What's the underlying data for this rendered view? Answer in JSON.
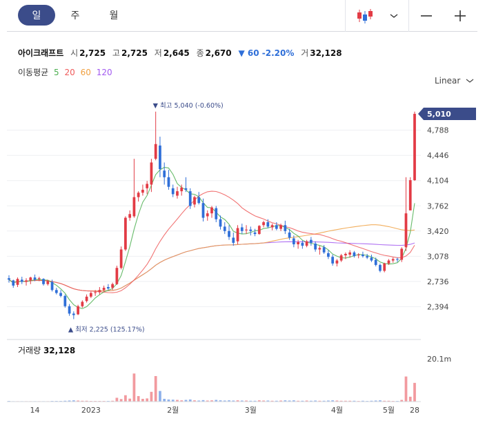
{
  "tabs": [
    "일",
    "주",
    "월"
  ],
  "controls": {
    "chart_type_icon": "candlestick-icon",
    "dropdown_icon": "chevron-down-icon",
    "zoom_out_icon": "minus-icon",
    "zoom_in_icon": "plus-icon"
  },
  "stock": {
    "name": "아이크래프트",
    "open_label": "시",
    "open": "2,725",
    "high_label": "고",
    "high": "2,725",
    "low_label": "저",
    "low": "2,645",
    "close_label": "종",
    "close": "2,670",
    "change": "▼ 60 -2.20%",
    "volume_label": "거",
    "volume": "32,128"
  },
  "moving_average": {
    "label": "이동평균",
    "periods": [
      "5",
      "20",
      "60",
      "120"
    ]
  },
  "scale_mode": "Linear",
  "volume_panel": {
    "label": "거래량",
    "value": "32,128",
    "axis_label": "20.1m"
  },
  "colors": {
    "up": "#e23b45",
    "down": "#2f6fd8",
    "ma5": "#4caf50",
    "ma20": "#ef5a5a",
    "ma60": "#f0a040",
    "ma120": "#a259f0",
    "accent": "#3b4c8a"
  },
  "chart_data": {
    "type": "candlestick",
    "y_ticks": [
      "4,788",
      "4,446",
      "4,104",
      "3,762",
      "3,420",
      "3,078",
      "2,736",
      "2,394"
    ],
    "y_range": [
      2220,
      5150
    ],
    "current_price_label": "5,010",
    "x_ticks": [
      "14",
      "2023",
      "2월",
      "3월",
      "4월",
      "5월",
      "28"
    ],
    "high_annotation": "최고 5,040 (-0.60%)",
    "low_annotation": "최저 2,225 (125.17%)",
    "candles": [
      [
        2780,
        2820,
        2720,
        2760
      ],
      [
        2750,
        2760,
        2650,
        2680
      ],
      [
        2690,
        2790,
        2660,
        2770
      ],
      [
        2760,
        2800,
        2700,
        2730
      ],
      [
        2730,
        2780,
        2680,
        2750
      ],
      [
        2750,
        2800,
        2700,
        2790
      ],
      [
        2790,
        2830,
        2740,
        2760
      ],
      [
        2770,
        2800,
        2740,
        2780
      ],
      [
        2770,
        2780,
        2680,
        2700
      ],
      [
        2700,
        2760,
        2680,
        2740
      ],
      [
        2730,
        2760,
        2600,
        2620
      ],
      [
        2620,
        2650,
        2560,
        2580
      ],
      [
        2580,
        2620,
        2520,
        2540
      ],
      [
        2540,
        2560,
        2380,
        2400
      ],
      [
        2400,
        2430,
        2270,
        2300
      ],
      [
        2300,
        2330,
        2225,
        2280
      ],
      [
        2290,
        2420,
        2280,
        2400
      ],
      [
        2400,
        2480,
        2380,
        2460
      ],
      [
        2470,
        2560,
        2450,
        2530
      ],
      [
        2530,
        2600,
        2510,
        2580
      ],
      [
        2580,
        2620,
        2540,
        2590
      ],
      [
        2590,
        2660,
        2560,
        2620
      ],
      [
        2620,
        2680,
        2590,
        2650
      ],
      [
        2660,
        2700,
        2620,
        2640
      ],
      [
        2650,
        2720,
        2620,
        2700
      ],
      [
        2700,
        2950,
        2690,
        2920
      ],
      [
        2920,
        3210,
        2900,
        3170
      ],
      [
        3170,
        3620,
        3150,
        3600
      ],
      [
        3600,
        3700,
        3560,
        3650
      ],
      [
        3620,
        4400,
        3600,
        3880
      ],
      [
        3880,
        3960,
        3820,
        3940
      ],
      [
        3940,
        4050,
        3900,
        3980
      ],
      [
        4000,
        4100,
        3920,
        4060
      ],
      [
        4050,
        4400,
        3950,
        4350
      ],
      [
        4400,
        5040,
        4380,
        4600
      ],
      [
        4580,
        4700,
        4150,
        4260
      ],
      [
        4240,
        4350,
        4050,
        4150
      ],
      [
        4150,
        4250,
        3980,
        4020
      ],
      [
        4000,
        4050,
        3880,
        3920
      ],
      [
        3900,
        4020,
        3860,
        3960
      ],
      [
        3960,
        4050,
        3900,
        4010
      ],
      [
        4000,
        4150,
        3950,
        3980
      ],
      [
        3960,
        4000,
        3720,
        3760
      ],
      [
        3780,
        3900,
        3740,
        3880
      ],
      [
        3880,
        3950,
        3780,
        3800
      ],
      [
        3800,
        3860,
        3550,
        3600
      ],
      [
        3620,
        3700,
        3560,
        3660
      ],
      [
        3660,
        3760,
        3600,
        3740
      ],
      [
        3730,
        3760,
        3540,
        3580
      ],
      [
        3580,
        3630,
        3440,
        3480
      ],
      [
        3480,
        3540,
        3380,
        3420
      ],
      [
        3420,
        3500,
        3300,
        3340
      ],
      [
        3330,
        3400,
        3220,
        3260
      ],
      [
        3280,
        3500,
        3240,
        3460
      ],
      [
        3470,
        3520,
        3380,
        3420
      ],
      [
        3430,
        3500,
        3380,
        3440
      ],
      [
        3440,
        3480,
        3360,
        3420
      ],
      [
        3400,
        3450,
        3350,
        3380
      ],
      [
        3380,
        3500,
        3370,
        3490
      ],
      [
        3500,
        3560,
        3470,
        3540
      ],
      [
        3540,
        3580,
        3460,
        3480
      ],
      [
        3470,
        3520,
        3430,
        3500
      ],
      [
        3500,
        3540,
        3430,
        3450
      ],
      [
        3450,
        3520,
        3420,
        3500
      ],
      [
        3500,
        3560,
        3380,
        3420
      ],
      [
        3400,
        3450,
        3300,
        3330
      ],
      [
        3320,
        3360,
        3200,
        3240
      ],
      [
        3240,
        3300,
        3180,
        3270
      ],
      [
        3260,
        3290,
        3180,
        3220
      ],
      [
        3220,
        3300,
        3200,
        3280
      ],
      [
        3300,
        3340,
        3220,
        3260
      ],
      [
        3250,
        3280,
        3140,
        3170
      ],
      [
        3170,
        3220,
        3100,
        3190
      ],
      [
        3200,
        3230,
        3110,
        3130
      ],
      [
        3120,
        3160,
        3040,
        3070
      ],
      [
        3070,
        3100,
        2950,
        2980
      ],
      [
        2980,
        3040,
        2940,
        3020
      ],
      [
        3020,
        3110,
        3000,
        3090
      ],
      [
        3090,
        3130,
        3040,
        3110
      ],
      [
        3100,
        3160,
        3060,
        3130
      ],
      [
        3130,
        3150,
        3060,
        3080
      ],
      [
        3090,
        3120,
        3050,
        3100
      ],
      [
        3100,
        3140,
        3060,
        3080
      ],
      [
        3080,
        3110,
        3040,
        3060
      ],
      [
        3060,
        3100,
        3000,
        3020
      ],
      [
        3030,
        3060,
        2940,
        2960
      ],
      [
        2960,
        2980,
        2860,
        2880
      ],
      [
        2880,
        2990,
        2860,
        2980
      ],
      [
        2980,
        3040,
        2960,
        3020
      ],
      [
        3020,
        3060,
        2990,
        3040
      ],
      [
        3040,
        3060,
        3000,
        3030
      ],
      [
        3030,
        3200,
        3000,
        3180
      ],
      [
        3200,
        4150,
        3150,
        3660
      ],
      [
        3700,
        4150,
        3700,
        4110
      ],
      [
        4110,
        5040,
        4100,
        5010
      ]
    ],
    "volume_max": 20.1,
    "volumes": [
      0.3,
      0.2,
      0.2,
      0.2,
      0.2,
      0.2,
      0.2,
      0.2,
      0.2,
      0.2,
      0.3,
      0.3,
      0.3,
      0.4,
      0.5,
      0.6,
      0.5,
      0.4,
      0.4,
      0.3,
      0.3,
      0.3,
      0.3,
      0.3,
      0.4,
      1.8,
      1.2,
      3.0,
      1.4,
      13.2,
      2.6,
      1.3,
      1.5,
      4.6,
      12.0,
      5.0,
      1.3,
      1.0,
      0.9,
      0.8,
      0.6,
      0.8,
      1.0,
      0.6,
      0.5,
      0.7,
      0.5,
      0.6,
      0.8,
      0.6,
      0.5,
      0.6,
      0.5,
      0.6,
      0.5,
      0.5,
      0.4,
      0.4,
      0.6,
      0.5,
      0.5,
      0.4,
      0.4,
      0.5,
      0.6,
      0.5,
      0.6,
      0.4,
      0.4,
      0.5,
      0.4,
      0.5,
      0.4,
      0.4,
      0.5,
      0.6,
      0.5,
      0.4,
      0.4,
      0.4,
      0.4,
      0.3,
      0.4,
      0.3,
      0.4,
      0.5,
      0.6,
      0.4,
      0.4,
      0.3,
      0.3,
      0.8,
      11.8,
      2.3,
      8.8
    ]
  }
}
